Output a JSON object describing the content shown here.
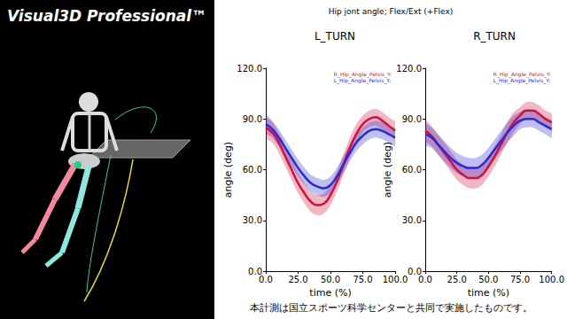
{
  "header": {
    "title": "Visual3D Professional™"
  },
  "title": "Hip jont angle; Flex/Ext (+Flex)",
  "footer": "本計測は国立スポーツ科学センターと共同で実施したものです。",
  "chart_data": [
    {
      "type": "line",
      "title": "L_TURN",
      "x_label": "time (%)",
      "y_label": "angle (deg)",
      "x": [
        0,
        5,
        10,
        15,
        20,
        25,
        30,
        35,
        40,
        45,
        50,
        55,
        60,
        65,
        70,
        75,
        80,
        85,
        90,
        95,
        100
      ],
      "series": [
        {
          "name": "R_Hip_Angle_Pelvis_Y:",
          "color": "#d0103a",
          "values": [
            85,
            82,
            76,
            68,
            60,
            52,
            46,
            41,
            39,
            40,
            45,
            53,
            63,
            73,
            81,
            87,
            90,
            91,
            89,
            86,
            83
          ],
          "sd": [
            6,
            6,
            6,
            6,
            6,
            6,
            6,
            6,
            6,
            6,
            6,
            6,
            6,
            6,
            6,
            5,
            5,
            5,
            5,
            5,
            5
          ]
        },
        {
          "name": "L_Hip_Angle_Pelvis_Y:",
          "color": "#2a2ad0",
          "values": [
            87,
            84,
            79,
            73,
            67,
            61,
            56,
            52,
            50,
            49,
            51,
            56,
            63,
            70,
            76,
            80,
            83,
            84,
            83,
            81,
            79
          ],
          "sd": [
            5,
            5,
            5,
            5,
            5,
            5,
            5,
            5,
            5,
            5,
            5,
            5,
            5,
            5,
            5,
            5,
            5,
            5,
            5,
            5,
            5
          ]
        }
      ],
      "xlim": [
        0,
        100
      ],
      "xticks": [
        {
          "value": 0,
          "label": "0.0"
        },
        {
          "value": 25,
          "label": "25.0"
        },
        {
          "value": 50,
          "label": "50.0"
        },
        {
          "value": 75,
          "label": "75.0"
        },
        {
          "value": 100,
          "label": "100.0"
        }
      ],
      "ylim": [
        0,
        120
      ],
      "yticks": [
        {
          "value": 0,
          "label": "0.0"
        },
        {
          "value": 30,
          "label": "30.0"
        },
        {
          "value": 60,
          "label": "60.0"
        },
        {
          "value": 90,
          "label": "90.0"
        },
        {
          "value": 120,
          "label": "120.0"
        }
      ],
      "grid": false,
      "legend": "upper right"
    },
    {
      "type": "line",
      "title": "R_TURN",
      "x_label": "time (%)",
      "y_label": "angle (deg)",
      "x": [
        0,
        5,
        10,
        15,
        20,
        25,
        30,
        35,
        40,
        45,
        50,
        55,
        60,
        65,
        70,
        75,
        80,
        85,
        90,
        95,
        100
      ],
      "series": [
        {
          "name": "R_Hip_Angle_Pelvis_Y:",
          "color": "#d0103a",
          "values": [
            83,
            80,
            75,
            70,
            65,
            60,
            57,
            55,
            55,
            57,
            62,
            68,
            75,
            82,
            88,
            92,
            95,
            95,
            93,
            90,
            88
          ],
          "sd": [
            6,
            6,
            6,
            6,
            6,
            6,
            6,
            6,
            6,
            6,
            6,
            6,
            6,
            6,
            6,
            5,
            5,
            5,
            5,
            5,
            5
          ]
        },
        {
          "name": "L_Hip_Angle_Pelvis_Y:",
          "color": "#2a2ad0",
          "values": [
            81,
            79,
            75,
            71,
            67,
            64,
            62,
            61,
            61,
            63,
            67,
            72,
            77,
            82,
            86,
            89,
            90,
            90,
            88,
            86,
            84
          ],
          "sd": [
            6,
            6,
            6,
            6,
            6,
            6,
            6,
            6,
            6,
            6,
            6,
            6,
            6,
            6,
            6,
            5,
            5,
            5,
            5,
            5,
            5
          ]
        }
      ],
      "xlim": [
        0,
        100
      ],
      "xticks": [
        {
          "value": 0,
          "label": "0.0"
        },
        {
          "value": 25,
          "label": "25.0"
        },
        {
          "value": 50,
          "label": "50.0"
        },
        {
          "value": 75,
          "label": "75.0"
        },
        {
          "value": 100,
          "label": "100.0"
        }
      ],
      "ylim": [
        0,
        120
      ],
      "yticks": [
        {
          "value": 0,
          "label": "0.0"
        },
        {
          "value": 30,
          "label": "30.0"
        },
        {
          "value": 60,
          "label": "60.0"
        },
        {
          "value": 90,
          "label": "90.0"
        },
        {
          "value": 120,
          "label": "120.0"
        }
      ],
      "grid": false,
      "legend": "upper right"
    }
  ]
}
